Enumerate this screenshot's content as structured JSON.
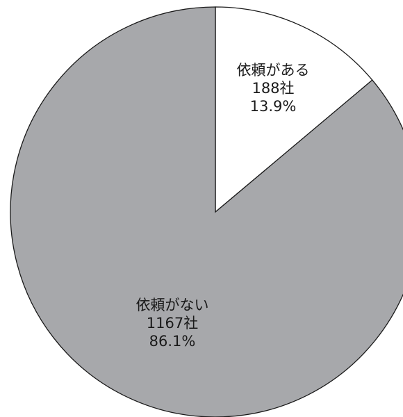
{
  "chart_data": {
    "type": "pie",
    "slices": [
      {
        "label": "依頼がある",
        "count": "188社",
        "percent_text": "13.9%",
        "value": 188,
        "percent": 13.9,
        "color": "#ffffff"
      },
      {
        "label": "依頼がない",
        "count": "1167社",
        "percent_text": "86.1%",
        "value": 1167,
        "percent": 86.1,
        "color": "#a7a8ab"
      }
    ],
    "start_angle": "12 o'clock",
    "direction": "clockwise",
    "legend": "none"
  }
}
